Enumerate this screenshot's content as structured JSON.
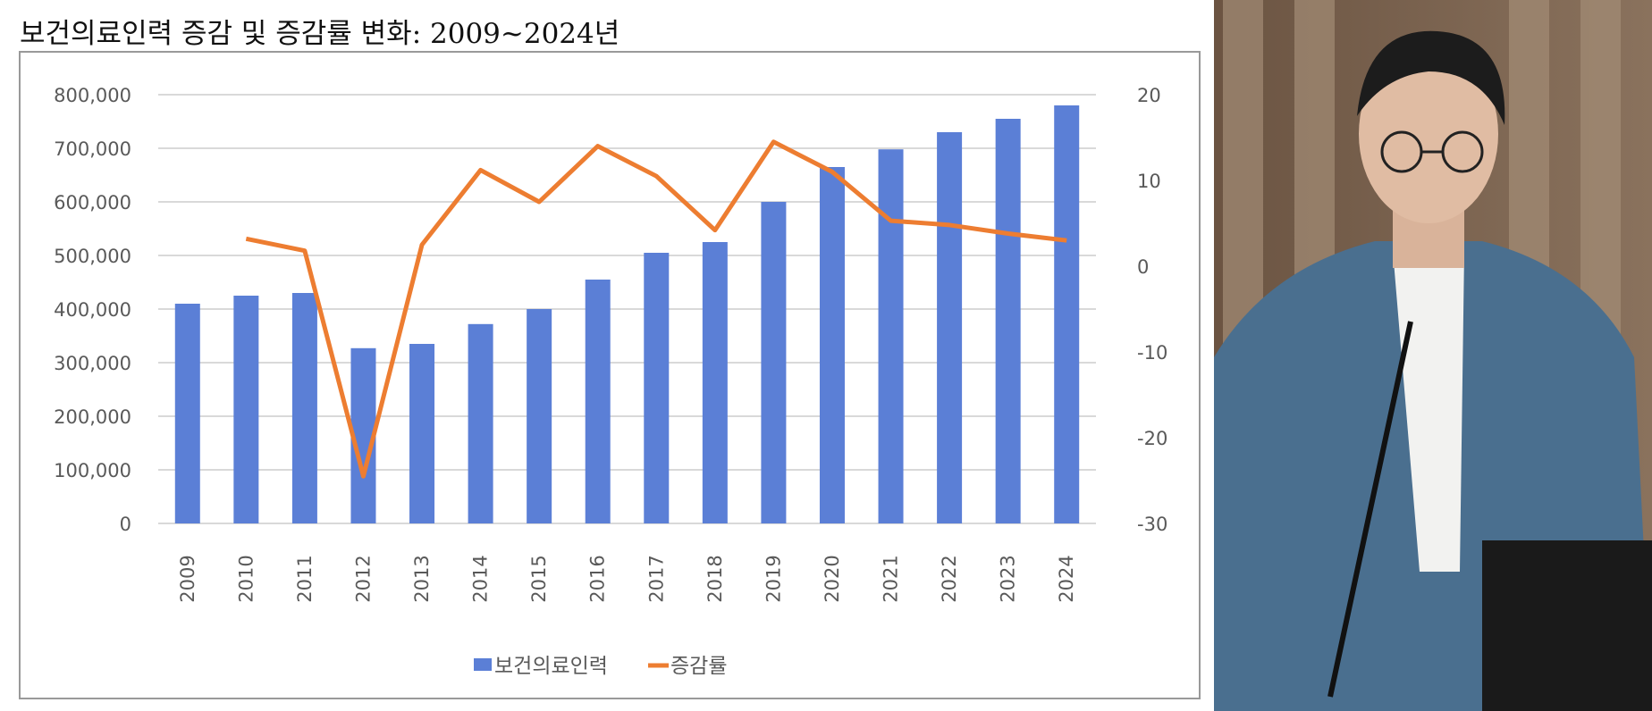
{
  "title": "보건의료인력 증감 및 증감률 변화: 2009~2024년",
  "chart_data": {
    "type": "bar+line",
    "title": "",
    "categories": [
      "2009",
      "2010",
      "2011",
      "2012",
      "2013",
      "2014",
      "2015",
      "2016",
      "2017",
      "2018",
      "2019",
      "2020",
      "2021",
      "2022",
      "2023",
      "2024"
    ],
    "series": [
      {
        "name": "보건의료인력",
        "type": "bar",
        "axis": "left",
        "color": "#5B7FD6",
        "values": [
          410000,
          425000,
          430000,
          327000,
          335000,
          372000,
          400000,
          455000,
          505000,
          525000,
          600000,
          665000,
          698000,
          730000,
          755000,
          780000
        ]
      },
      {
        "name": "증감률",
        "type": "line",
        "axis": "right",
        "color": "#ED7D31",
        "values": [
          null,
          3.2,
          1.8,
          -24.5,
          2.5,
          11.2,
          7.5,
          14.0,
          10.5,
          4.2,
          14.5,
          11.0,
          5.3,
          4.8,
          3.8,
          3.0
        ]
      }
    ],
    "y_left": {
      "range": [
        0,
        800000
      ],
      "ticks": [
        "0",
        "100,000",
        "200,000",
        "300,000",
        "400,000",
        "500,000",
        "600,000",
        "700,000",
        "800,000"
      ]
    },
    "y_right": {
      "range": [
        -30,
        20
      ],
      "ticks": [
        "-30",
        "-20",
        "-10",
        "0",
        "10",
        "20"
      ]
    },
    "grid": true,
    "legend": "bottom"
  },
  "photo": {
    "description_icon": "speaker-photo"
  }
}
